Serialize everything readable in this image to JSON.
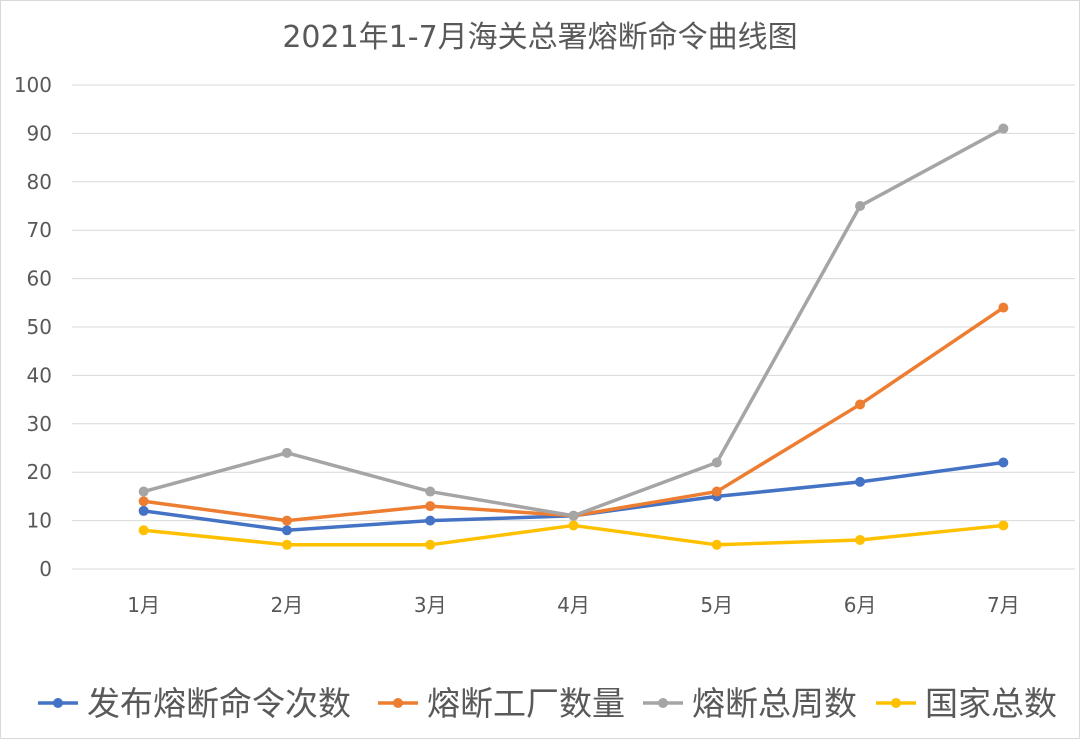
{
  "chart_data": {
    "type": "line",
    "title": "2021年1-7月海关总署熔断命令曲线图",
    "categories": [
      "1月",
      "2月",
      "3月",
      "4月",
      "5月",
      "6月",
      "7月"
    ],
    "ylim": [
      0,
      100
    ],
    "yticks": [
      0,
      10,
      20,
      30,
      40,
      50,
      60,
      70,
      80,
      90,
      100
    ],
    "grid": true,
    "legend_position": "bottom",
    "series": [
      {
        "name": "发布熔断命令次数",
        "color": "#4472c4",
        "values": [
          12,
          8,
          10,
          11,
          15,
          18,
          22
        ]
      },
      {
        "name": "熔断工厂数量",
        "color": "#ed7d31",
        "values": [
          14,
          10,
          13,
          11,
          16,
          34,
          54
        ]
      },
      {
        "name": "熔断总周数",
        "color": "#a5a5a5",
        "values": [
          16,
          24,
          16,
          11,
          22,
          75,
          91
        ]
      },
      {
        "name": "国家总数",
        "color": "#ffc000",
        "values": [
          8,
          5,
          5,
          9,
          5,
          6,
          9
        ]
      }
    ]
  }
}
